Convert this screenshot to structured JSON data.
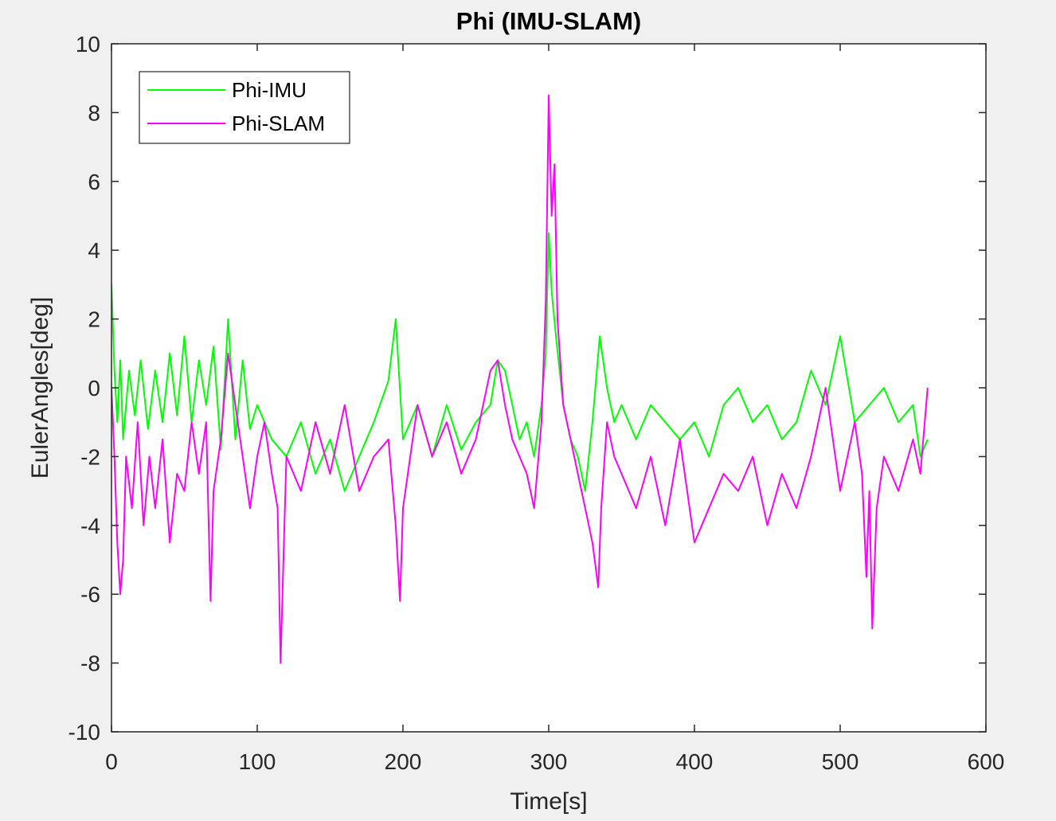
{
  "chart_data": {
    "type": "line",
    "title": "Phi (IMU-SLAM)",
    "xlabel": "Time[s]",
    "ylabel": "EulerAngles[deg]",
    "xlim": [
      0,
      600
    ],
    "ylim": [
      -10,
      10
    ],
    "xticks": [
      "0",
      "100",
      "200",
      "300",
      "400",
      "500",
      "600"
    ],
    "yticks": [
      "-10",
      "-8",
      "-6",
      "-4",
      "-2",
      "0",
      "2",
      "4",
      "6",
      "8",
      "10"
    ],
    "grid": false,
    "legend_location": "top-left",
    "series": [
      {
        "name": "Phi-IMU",
        "color": "#00ff00",
        "x": [
          0,
          2,
          4,
          6,
          8,
          12,
          16,
          20,
          25,
          30,
          35,
          40,
          45,
          50,
          55,
          60,
          65,
          70,
          75,
          80,
          85,
          90,
          95,
          100,
          110,
          120,
          130,
          140,
          150,
          160,
          170,
          180,
          190,
          195,
          200,
          210,
          220,
          230,
          240,
          250,
          260,
          265,
          270,
          275,
          280,
          285,
          290,
          295,
          298,
          300,
          302,
          305,
          310,
          315,
          320,
          325,
          330,
          335,
          340,
          345,
          350,
          360,
          370,
          380,
          390,
          400,
          410,
          420,
          430,
          440,
          450,
          460,
          470,
          480,
          490,
          500,
          510,
          520,
          530,
          540,
          550,
          555,
          560
        ],
        "y": [
          3.0,
          0.5,
          -1.0,
          0.8,
          -1.5,
          0.5,
          -0.8,
          0.8,
          -1.2,
          0.5,
          -1.0,
          1.0,
          -0.8,
          1.5,
          -1.0,
          0.8,
          -0.5,
          1.2,
          -1.8,
          2.0,
          -1.5,
          0.8,
          -1.2,
          -0.5,
          -1.5,
          -2.0,
          -1.0,
          -2.5,
          -1.5,
          -3.0,
          -2.0,
          -1.0,
          0.2,
          2.0,
          -1.5,
          -0.5,
          -2.0,
          -0.5,
          -1.8,
          -1.0,
          -0.5,
          0.8,
          0.5,
          -0.5,
          -1.5,
          -1.0,
          -2.0,
          -0.5,
          1.0,
          4.5,
          2.8,
          1.5,
          -0.5,
          -1.5,
          -2.0,
          -3.0,
          -1.0,
          1.5,
          0.0,
          -1.0,
          -0.5,
          -1.5,
          -0.5,
          -1.0,
          -1.5,
          -1.0,
          -2.0,
          -0.5,
          0.0,
          -1.0,
          -0.5,
          -1.5,
          -1.0,
          0.5,
          -0.5,
          1.5,
          -1.0,
          -0.5,
          0.0,
          -1.0,
          -0.5,
          -2.0,
          -1.5
        ]
      },
      {
        "name": "Phi-SLAM",
        "color": "#ff00ff",
        "x": [
          0,
          2,
          4,
          6,
          8,
          10,
          14,
          18,
          22,
          26,
          30,
          35,
          40,
          45,
          50,
          55,
          60,
          65,
          68,
          70,
          75,
          80,
          85,
          90,
          95,
          100,
          105,
          110,
          114,
          116,
          118,
          120,
          130,
          140,
          150,
          160,
          170,
          180,
          190,
          195,
          198,
          200,
          210,
          220,
          230,
          240,
          250,
          260,
          265,
          270,
          275,
          280,
          285,
          290,
          295,
          298,
          300,
          302,
          304,
          306,
          310,
          315,
          320,
          325,
          330,
          334,
          336,
          340,
          345,
          350,
          360,
          370,
          380,
          390,
          400,
          410,
          420,
          430,
          440,
          450,
          460,
          470,
          480,
          490,
          500,
          510,
          515,
          518,
          520,
          522,
          525,
          530,
          540,
          550,
          555,
          560
        ],
        "y": [
          0.0,
          -2.0,
          -4.5,
          -6.0,
          -5.0,
          -2.0,
          -3.5,
          -1.0,
          -4.0,
          -2.0,
          -3.5,
          -1.5,
          -4.5,
          -2.5,
          -3.0,
          -1.0,
          -2.5,
          -1.0,
          -6.2,
          -3.0,
          -1.5,
          1.0,
          -0.5,
          -2.0,
          -3.5,
          -2.0,
          -1.0,
          -2.5,
          -3.5,
          -8.0,
          -5.0,
          -2.0,
          -3.0,
          -1.0,
          -2.5,
          -0.5,
          -3.0,
          -2.0,
          -1.5,
          -4.0,
          -6.2,
          -3.5,
          -0.5,
          -2.0,
          -1.0,
          -2.5,
          -1.5,
          0.5,
          0.8,
          -0.5,
          -1.5,
          -2.0,
          -2.5,
          -3.5,
          -1.0,
          2.5,
          8.5,
          5.0,
          6.5,
          2.0,
          -0.5,
          -1.5,
          -2.5,
          -3.5,
          -4.5,
          -5.8,
          -3.5,
          -1.0,
          -2.0,
          -2.5,
          -3.5,
          -2.0,
          -4.0,
          -1.5,
          -4.5,
          -3.5,
          -2.5,
          -3.0,
          -2.0,
          -4.0,
          -2.5,
          -3.5,
          -2.0,
          0.0,
          -3.0,
          -1.0,
          -2.5,
          -5.5,
          -3.0,
          -7.0,
          -3.5,
          -2.0,
          -3.0,
          -1.5,
          -2.5,
          0.0
        ]
      }
    ]
  }
}
